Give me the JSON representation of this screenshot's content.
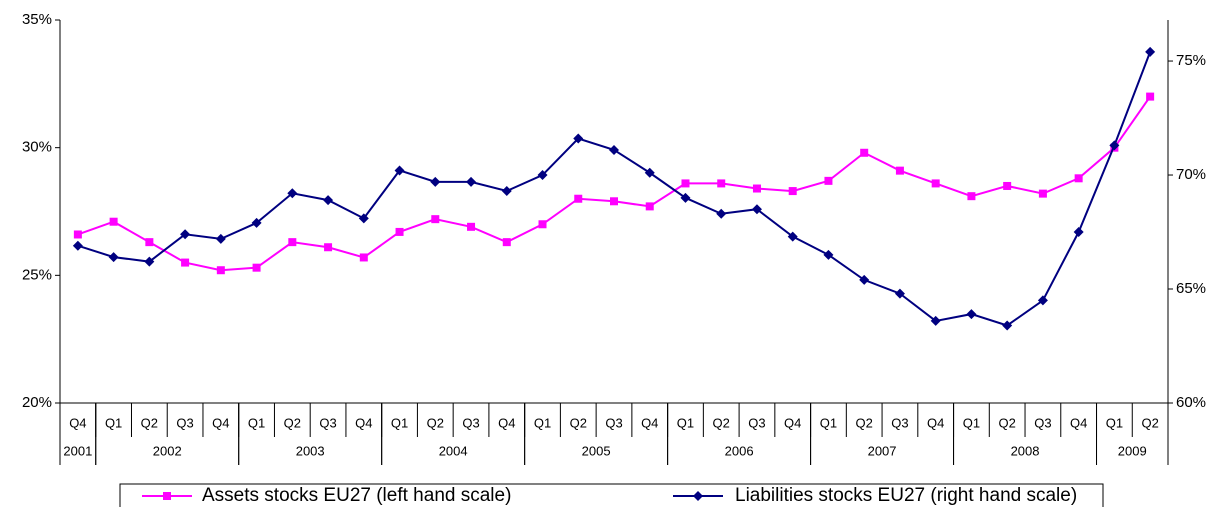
{
  "chart_data": {
    "type": "line",
    "categories": [
      "Q4",
      "Q1",
      "Q2",
      "Q3",
      "Q4",
      "Q1",
      "Q2",
      "Q3",
      "Q4",
      "Q1",
      "Q2",
      "Q3",
      "Q4",
      "Q1",
      "Q2",
      "Q3",
      "Q4",
      "Q1",
      "Q2",
      "Q3",
      "Q4",
      "Q1",
      "Q2",
      "Q3",
      "Q4",
      "Q1",
      "Q2",
      "Q3",
      "Q4",
      "Q1",
      "Q2"
    ],
    "groups": [
      {
        "label": "2001",
        "count": 1
      },
      {
        "label": "2002",
        "count": 4
      },
      {
        "label": "2003",
        "count": 4
      },
      {
        "label": "2004",
        "count": 4
      },
      {
        "label": "2005",
        "count": 4
      },
      {
        "label": "2006",
        "count": 4
      },
      {
        "label": "2007",
        "count": 4
      },
      {
        "label": "2008",
        "count": 4
      },
      {
        "label": "2009",
        "count": 2
      }
    ],
    "series": [
      {
        "name": "Assets stocks EU27 (left hand scale)",
        "color": "#ff00ff",
        "marker": "square",
        "values": [
          26.6,
          27.1,
          26.3,
          25.5,
          25.2,
          25.3,
          26.3,
          26.1,
          25.7,
          26.7,
          27.2,
          26.9,
          26.3,
          27.0,
          28.0,
          27.9,
          27.7,
          28.6,
          28.6,
          28.4,
          28.3,
          28.7,
          29.8,
          29.1,
          28.6,
          28.1,
          28.5,
          28.2,
          28.8,
          30.0,
          32.0
        ]
      },
      {
        "name": "Liabilities stocks EU27 (right hand scale)",
        "color": "#000080",
        "marker": "diamond",
        "axis": "y2",
        "values": [
          66.9,
          66.4,
          66.2,
          67.4,
          67.2,
          67.9,
          69.2,
          68.9,
          68.1,
          70.2,
          69.7,
          69.7,
          69.3,
          70.0,
          71.6,
          71.1,
          70.1,
          69.0,
          68.3,
          68.5,
          67.3,
          66.5,
          65.4,
          64.8,
          63.6,
          63.9,
          63.4,
          64.5,
          67.5,
          71.3,
          75.4
        ]
      }
    ],
    "ylim": [
      20,
      35
    ],
    "yticks": [
      {
        "value": 20,
        "label": "20%"
      },
      {
        "value": 25,
        "label": "25%"
      },
      {
        "value": 30,
        "label": "30%"
      },
      {
        "value": 35,
        "label": "35%"
      }
    ],
    "y2lim": [
      60,
      76.8
    ],
    "y2ticks": [
      {
        "value": 60,
        "label": "60%"
      },
      {
        "value": 65,
        "label": "65%"
      },
      {
        "value": 70,
        "label": "70%"
      },
      {
        "value": 75,
        "label": "75%"
      }
    ],
    "grid": false,
    "legend": "bottom"
  }
}
